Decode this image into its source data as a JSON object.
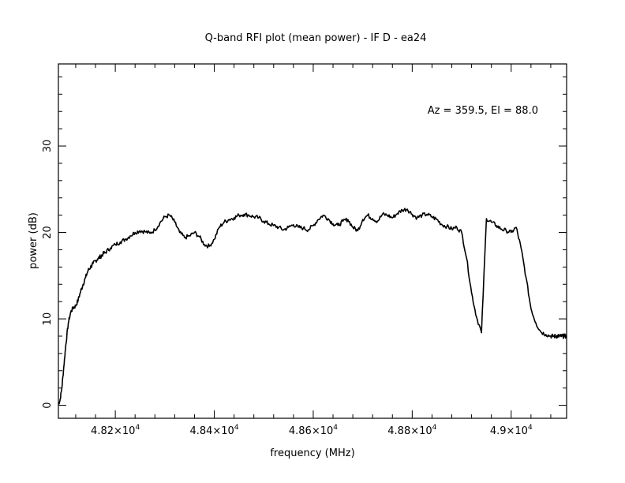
{
  "chart_data": {
    "type": "line",
    "title": "Q-band RFI plot (mean power) - IF D - ea24",
    "xlabel": "frequency (MHz)",
    "ylabel": "power (dB)",
    "annotation": "Az = 359.5, El = 88.0",
    "xlim": [
      48085,
      49112
    ],
    "ylim": [
      -1.5,
      39.5
    ],
    "x_ticks": [
      {
        "value": 48200,
        "label": "4.82×10^4"
      },
      {
        "value": 48400,
        "label": "4.84×10^4"
      },
      {
        "value": 48600,
        "label": "4.86×10^4"
      },
      {
        "value": 48800,
        "label": "4.88×10^4"
      },
      {
        "value": 49000,
        "label": "4.9×10^4"
      }
    ],
    "y_ticks": [
      0,
      10,
      20,
      30
    ],
    "grid": false,
    "line_color": "#000000",
    "series": [
      {
        "x": [
          48085,
          48088,
          48092,
          48096,
          48100,
          48105,
          48110,
          48115,
          48120,
          48125,
          48130,
          48135,
          48140,
          48145,
          48150,
          48155,
          48160,
          48165,
          48170,
          48175,
          48180,
          48190,
          48200,
          48210,
          48220,
          48230,
          48240,
          48250,
          48260,
          48270,
          48280,
          48290,
          48300,
          48310,
          48320,
          48330,
          48340,
          48350,
          48360,
          48370,
          48380,
          48390,
          48400,
          48410,
          48420,
          48430,
          48440,
          48450,
          48460,
          48470,
          48480,
          48490,
          48500,
          48510,
          48520,
          48530,
          48540,
          48550,
          48560,
          48570,
          48580,
          48590,
          48600,
          48610,
          48620,
          48630,
          48640,
          48650,
          48660,
          48670,
          48680,
          48690,
          48700,
          48710,
          48720,
          48730,
          48740,
          48750,
          48760,
          48770,
          48780,
          48790,
          48800,
          48810,
          48820,
          48830,
          48840,
          48850,
          48860,
          48870,
          48880,
          48890,
          48900,
          48910,
          48920,
          48930,
          48940,
          48950,
          48960,
          48970,
          48980,
          48990,
          49000,
          49010,
          49020,
          49030,
          49040,
          49050,
          49060,
          49070,
          49080,
          49085,
          49090,
          49093,
          49096,
          49100,
          49104,
          49108,
          49112
        ],
        "y": [
          0.2,
          0.5,
          2.0,
          4.5,
          7.0,
          9.5,
          10.8,
          11.3,
          11.5,
          12.2,
          13.2,
          14.0,
          14.8,
          15.6,
          16.0,
          16.4,
          16.7,
          17.0,
          17.2,
          17.5,
          17.7,
          18.2,
          18.6,
          18.9,
          19.2,
          19.6,
          20.0,
          20.2,
          20.1,
          19.9,
          20.3,
          21.1,
          21.8,
          22.0,
          21.2,
          20.0,
          19.4,
          19.6,
          20.0,
          19.5,
          18.6,
          18.4,
          19.2,
          20.6,
          21.2,
          21.5,
          21.7,
          22.0,
          22.1,
          22.0,
          21.8,
          21.7,
          21.3,
          21.0,
          20.8,
          20.6,
          20.3,
          20.6,
          20.9,
          20.6,
          20.5,
          20.3,
          20.8,
          21.5,
          22.0,
          21.6,
          21.0,
          20.8,
          21.3,
          21.5,
          20.6,
          20.2,
          21.5,
          22.0,
          21.6,
          21.3,
          22.1,
          22.0,
          21.7,
          22.2,
          22.6,
          22.7,
          22.1,
          21.7,
          22.0,
          22.1,
          21.8,
          21.5,
          20.9,
          20.7,
          20.4,
          20.6,
          20.0,
          17.0,
          13.0,
          10.2,
          8.4,
          21.6,
          21.2,
          20.8,
          20.4,
          20.2,
          20.0,
          20.6,
          18.2,
          14.8,
          11.2,
          9.5,
          8.5,
          8.2,
          8.0,
          8.0,
          8.0,
          8.0,
          8.0,
          8.0,
          8.0,
          8.0,
          8.0
        ]
      }
    ]
  }
}
